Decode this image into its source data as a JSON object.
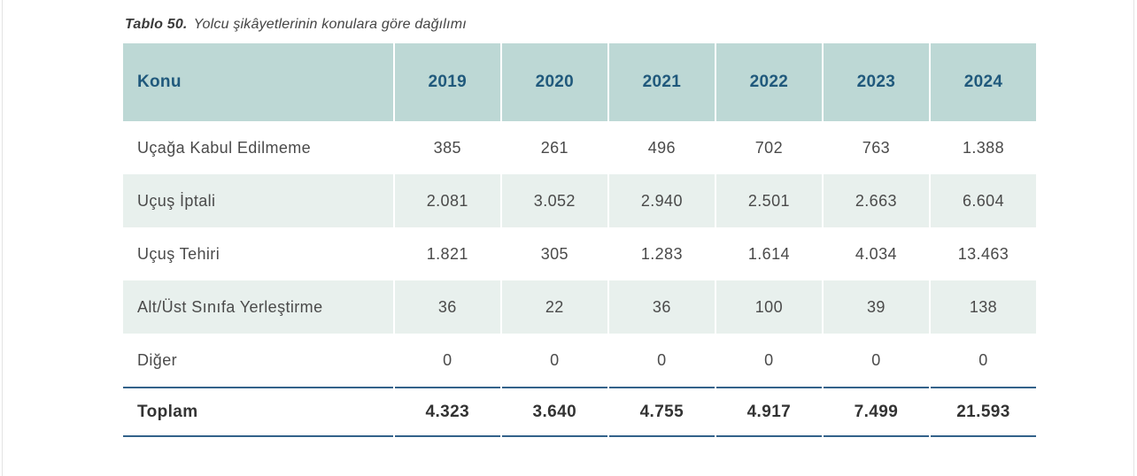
{
  "caption": {
    "number": "Tablo 50.",
    "text": "Yolcu şikâyetlerinin konulara göre dağılımı"
  },
  "table": {
    "header": {
      "konu": "Konu",
      "years": [
        "2019",
        "2020",
        "2021",
        "2022",
        "2023",
        "2024"
      ]
    },
    "rows": [
      {
        "label": "Uçağa Kabul Edilmeme",
        "values": [
          "385",
          "261",
          "496",
          "702",
          "763",
          "1.388"
        ]
      },
      {
        "label": "Uçuş İptali",
        "values": [
          "2.081",
          "3.052",
          "2.940",
          "2.501",
          "2.663",
          "6.604"
        ]
      },
      {
        "label": "Uçuş Tehiri",
        "values": [
          "1.821",
          "305",
          "1.283",
          "1.614",
          "4.034",
          "13.463"
        ]
      },
      {
        "label": "Alt/Üst Sınıfa Yerleştirme",
        "values": [
          "36",
          "22",
          "36",
          "100",
          "39",
          "138"
        ]
      },
      {
        "label": "Diğer",
        "values": [
          "0",
          "0",
          "0",
          "0",
          "0",
          "0"
        ]
      }
    ],
    "total": {
      "label": "Toplam",
      "values": [
        "4.323",
        "3.640",
        "4.755",
        "4.917",
        "7.499",
        "21.593"
      ]
    }
  },
  "colors": {
    "header_background": "#bdd8d5",
    "header_text": "#20597c",
    "stripe_background": "#e8f0ed",
    "body_text": "#4a4a4a",
    "total_text": "#333333",
    "rule_line": "#33628a",
    "page_background": "#ffffff"
  }
}
